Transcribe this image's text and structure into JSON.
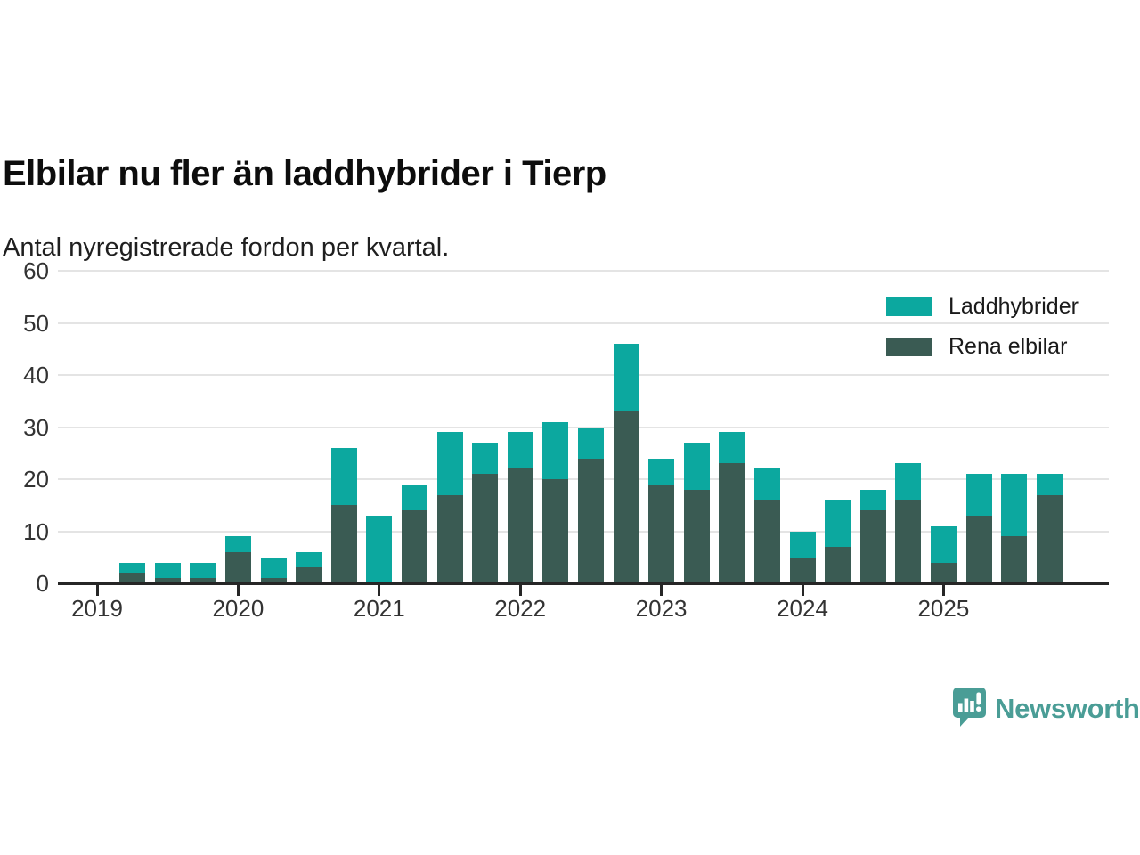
{
  "header": {
    "title": "Elbilar nu fler än laddhybrider i Tierp",
    "subtitle": "Antal nyregistrerade fordon per kvartal."
  },
  "chart_data": {
    "type": "bar",
    "stacked": true,
    "title": "Elbilar nu fler än laddhybrider i Tierp",
    "subtitle": "Antal nyregistrerade fordon per kvartal.",
    "unit": "antal fordon",
    "categories": [
      "2019 Q2",
      "2019 Q3",
      "2019 Q4",
      "2020 Q1",
      "2020 Q2",
      "2020 Q3",
      "2020 Q4",
      "2021 Q1",
      "2021 Q2",
      "2021 Q3",
      "2021 Q4",
      "2022 Q1",
      "2022 Q2",
      "2022 Q3",
      "2022 Q4",
      "2023 Q1",
      "2023 Q2",
      "2023 Q3",
      "2023 Q4",
      "2024 Q1",
      "2024 Q2",
      "2024 Q3",
      "2024 Q4",
      "2025 Q1",
      "2025 Q2",
      "2025 Q3",
      "2025 Q4"
    ],
    "series": [
      {
        "name": "Rena elbilar",
        "color": "#3a5b53",
        "stack_position": "bottom",
        "values": [
          2,
          1,
          1,
          6,
          1,
          3,
          15,
          0,
          14,
          17,
          21,
          22,
          20,
          24,
          33,
          19,
          18,
          23,
          16,
          5,
          7,
          14,
          16,
          4,
          13,
          9,
          17
        ]
      },
      {
        "name": "Laddhybrider",
        "color": "#0ca89f",
        "stack_position": "top",
        "values": [
          2,
          3,
          3,
          3,
          4,
          3,
          11,
          13,
          5,
          12,
          6,
          7,
          11,
          6,
          13,
          5,
          9,
          6,
          6,
          5,
          9,
          4,
          7,
          7,
          8,
          12,
          4
        ]
      }
    ],
    "totals": [
      4,
      4,
      4,
      9,
      5,
      6,
      26,
      13,
      19,
      29,
      27,
      29,
      31,
      30,
      46,
      24,
      27,
      29,
      22,
      10,
      16,
      18,
      23,
      11,
      21,
      21,
      21
    ],
    "ylim": [
      0,
      60
    ],
    "yticks": [
      0,
      10,
      20,
      30,
      40,
      50,
      60
    ],
    "xticks": [
      "2019",
      "2020",
      "2021",
      "2022",
      "2023",
      "2024",
      "2025"
    ],
    "grid": "horizontal",
    "legend_position": "top-right"
  },
  "legend": {
    "items": [
      {
        "label": "Laddhybrider",
        "color": "#0ca89f"
      },
      {
        "label": "Rena elbilar",
        "color": "#3a5b53"
      }
    ]
  },
  "footer": {
    "brand": "Newsworthy",
    "brand_color": "#4a9d96"
  }
}
